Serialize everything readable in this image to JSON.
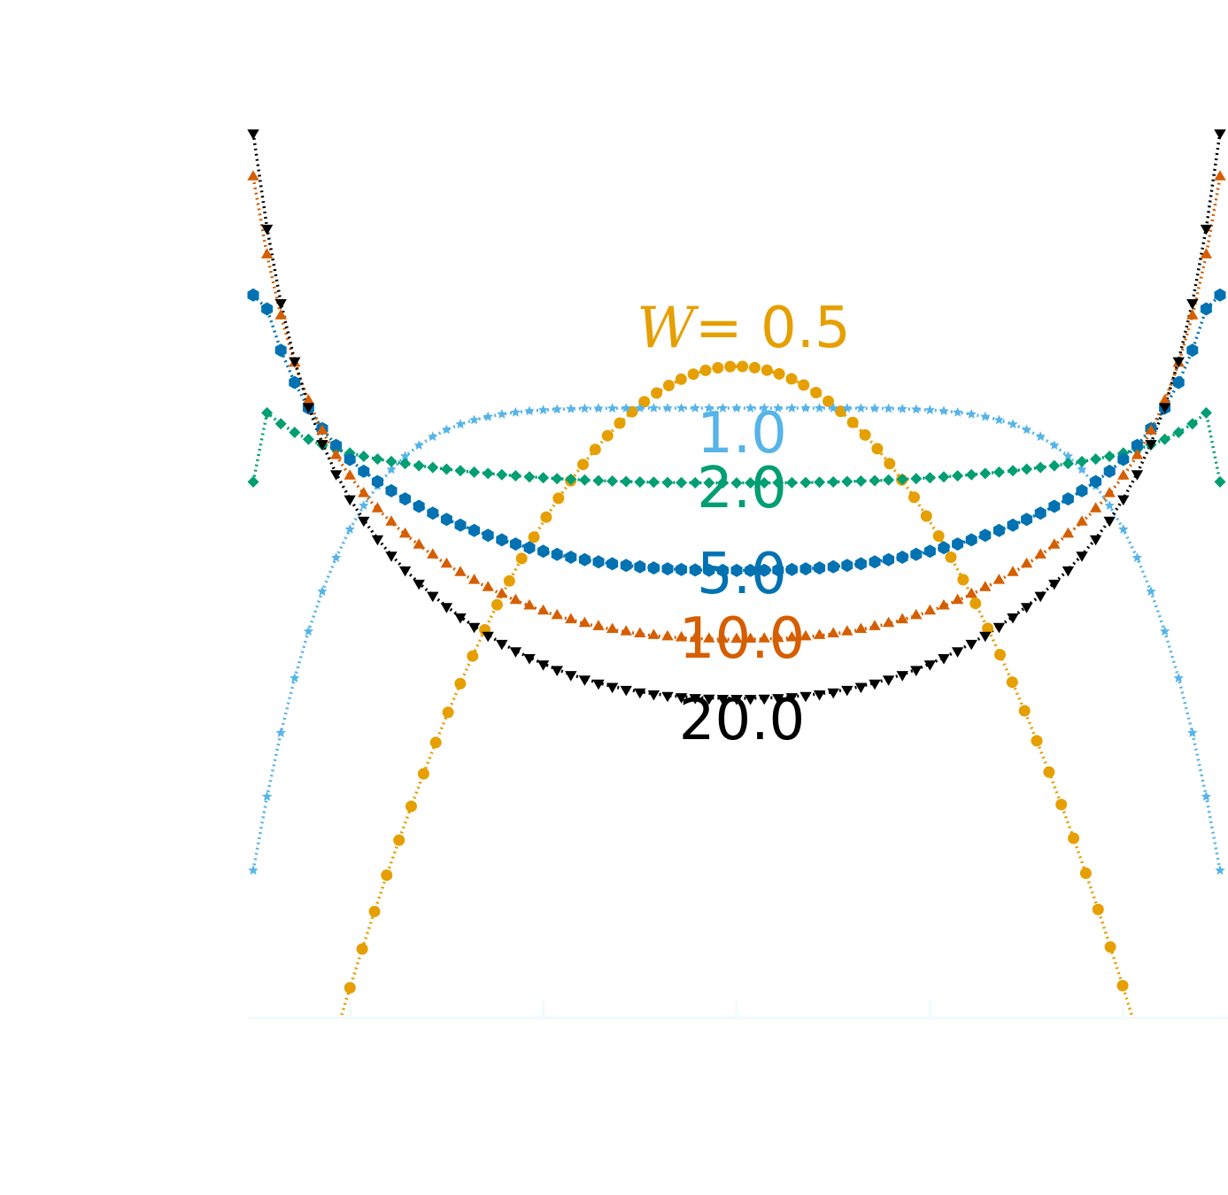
{
  "chart_data": {
    "type": "line",
    "title": "",
    "xlabel": "",
    "ylabel": "",
    "xlim": [
      0,
      1
    ],
    "ylim": [
      -0.85,
      0.95
    ],
    "x_ticks": [
      0.1,
      0.3,
      0.5,
      0.7,
      0.9
    ],
    "grid": false,
    "legend": "none",
    "points_per_series": 71,
    "series": [
      {
        "name": "W=0.5",
        "label_prefix": "W",
        "label_value": "= 0.5",
        "color": "#E69F00",
        "marker": "circle",
        "model": "parabola",
        "center": 0.475,
        "edge": -1.5,
        "x_start": 0.062,
        "x_end": 0.95
      },
      {
        "name": "W=1.0",
        "label_value": "1.0",
        "color": "#56B4E9",
        "marker": "star",
        "model": "quartic",
        "center": 0.39,
        "edge": -0.55,
        "x_start": 0.0,
        "x_end": 1.0
      },
      {
        "name": "W=2.0",
        "label_value": "2.0",
        "color": "#009E73",
        "marker": "diamond",
        "model": "bowl",
        "center": 0.238,
        "peak": 0.41,
        "edge": 0.24,
        "x_start": 0.0,
        "x_end": 1.0
      },
      {
        "name": "W=5.0",
        "label_value": "5.0",
        "color": "#0072B2",
        "marker": "hexagon",
        "model": "bowl",
        "center": 0.06,
        "peak": 0.7,
        "edge": 0.62,
        "x_start": 0.0,
        "x_end": 1.0
      },
      {
        "name": "W=10.0",
        "label_value": "10.0",
        "color": "#D55E00",
        "marker": "triangle-up",
        "model": "bowl",
        "center": -0.08,
        "peak": 0.86,
        "edge": 0.86,
        "x_start": 0.0,
        "x_end": 1.0
      },
      {
        "name": "W=20.0",
        "label_value": "20.0",
        "color": "#000000",
        "marker": "triangle-down",
        "model": "bowl",
        "center": -0.2,
        "peak": 0.95,
        "edge": 0.95,
        "x_start": 0.0,
        "x_end": 1.0
      }
    ]
  }
}
